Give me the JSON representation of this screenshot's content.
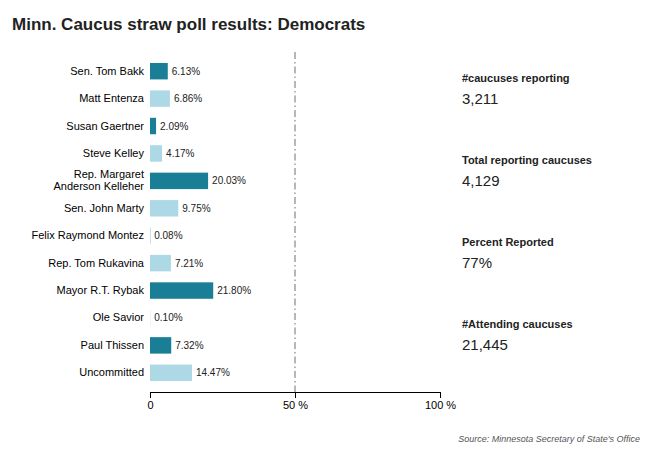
{
  "chart_data": {
    "type": "bar",
    "orientation": "horizontal",
    "title": "Minn. Caucus straw poll results: Democrats",
    "categories": [
      "Sen. Tom Bakk",
      "Matt Entenza",
      "Susan Gaertner",
      "Steve Kelley",
      "Rep. Margaret\nAnderson Kelleher",
      "Sen. John Marty",
      "Felix Raymond Montez",
      "Rep. Tom Rukavina",
      "Mayor R.T. Rybak",
      "Ole Savior",
      "Paul Thissen",
      "Uncommitted"
    ],
    "values": [
      6.13,
      6.86,
      2.09,
      4.17,
      20.03,
      9.75,
      0.08,
      7.21,
      21.8,
      0.1,
      7.32,
      14.47
    ],
    "value_labels": [
      "6.13%",
      "6.86%",
      "2.09%",
      "4.17%",
      "20.03%",
      "9.75%",
      "0.08%",
      "7.21%",
      "21.80%",
      "0.10%",
      "7.32%",
      "14.47%"
    ],
    "data_labels": true,
    "colors": [
      "#1a7f96",
      "#add8e6",
      "#1a7f96",
      "#add8e6",
      "#1a7f96",
      "#add8e6",
      "#1a7f96",
      "#add8e6",
      "#1a7f96",
      "#add8e6",
      "#1a7f96",
      "#add8e6"
    ],
    "xlim": [
      0,
      100
    ],
    "xticks": [
      0,
      {
        "value": 50,
        "label": "50 %"
      },
      {
        "value": 100,
        "label": "100 %"
      }
    ],
    "reference_line": 50,
    "grid": false,
    "annotations": [
      {
        "title": "#caucuses reporting",
        "text": "3,211"
      },
      {
        "title": "Total reporting caucuses",
        "text": "4,129"
      },
      {
        "title": "Percent Reported",
        "text": "77%"
      },
      {
        "title": "#Attending caucuses",
        "text": "21,445"
      }
    ],
    "source": "Source: Minnesota Secretary of State's Office"
  }
}
